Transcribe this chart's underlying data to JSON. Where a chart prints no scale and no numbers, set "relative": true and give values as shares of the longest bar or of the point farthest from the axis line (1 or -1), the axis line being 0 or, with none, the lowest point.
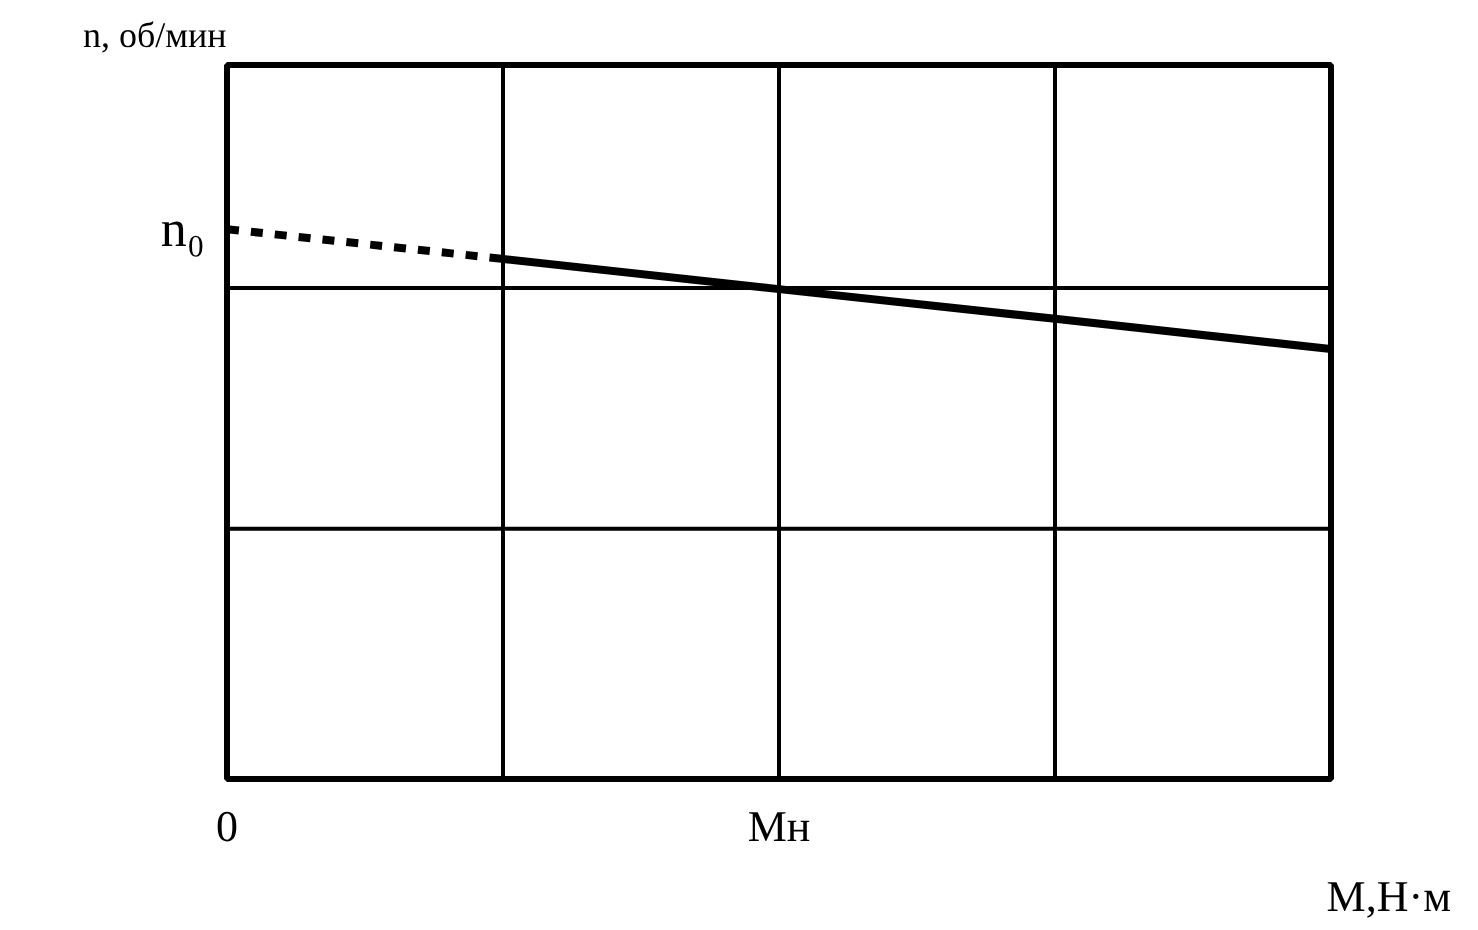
{
  "chart_data": {
    "type": "line",
    "xlabel": "M,Н·м",
    "ylabel": "n, об/мин",
    "relative": true,
    "categories": [
      "0",
      null,
      "Mн",
      null,
      null
    ],
    "grid": "x",
    "marker": "none",
    "series": [
      {
        "values": [
          1,
          0.946,
          null,
          null,
          null
        ],
        "color": "#000000",
        "line_style": "dashed"
      },
      {
        "values": [
          null,
          0.946,
          0.891,
          0.837,
          0.782
        ],
        "color": "#000000",
        "line_style": "solid"
      }
    ],
    "ref_lines": [
      {
        "axis": "y",
        "value": 0.455,
        "label": null,
        "color": "#000000"
      },
      {
        "axis": "y",
        "value": 0.893,
        "label": null,
        "color": "#000000"
      }
    ],
    "annotations": [
      {
        "text": "n₀",
        "x": "0",
        "y": 1
      }
    ]
  }
}
